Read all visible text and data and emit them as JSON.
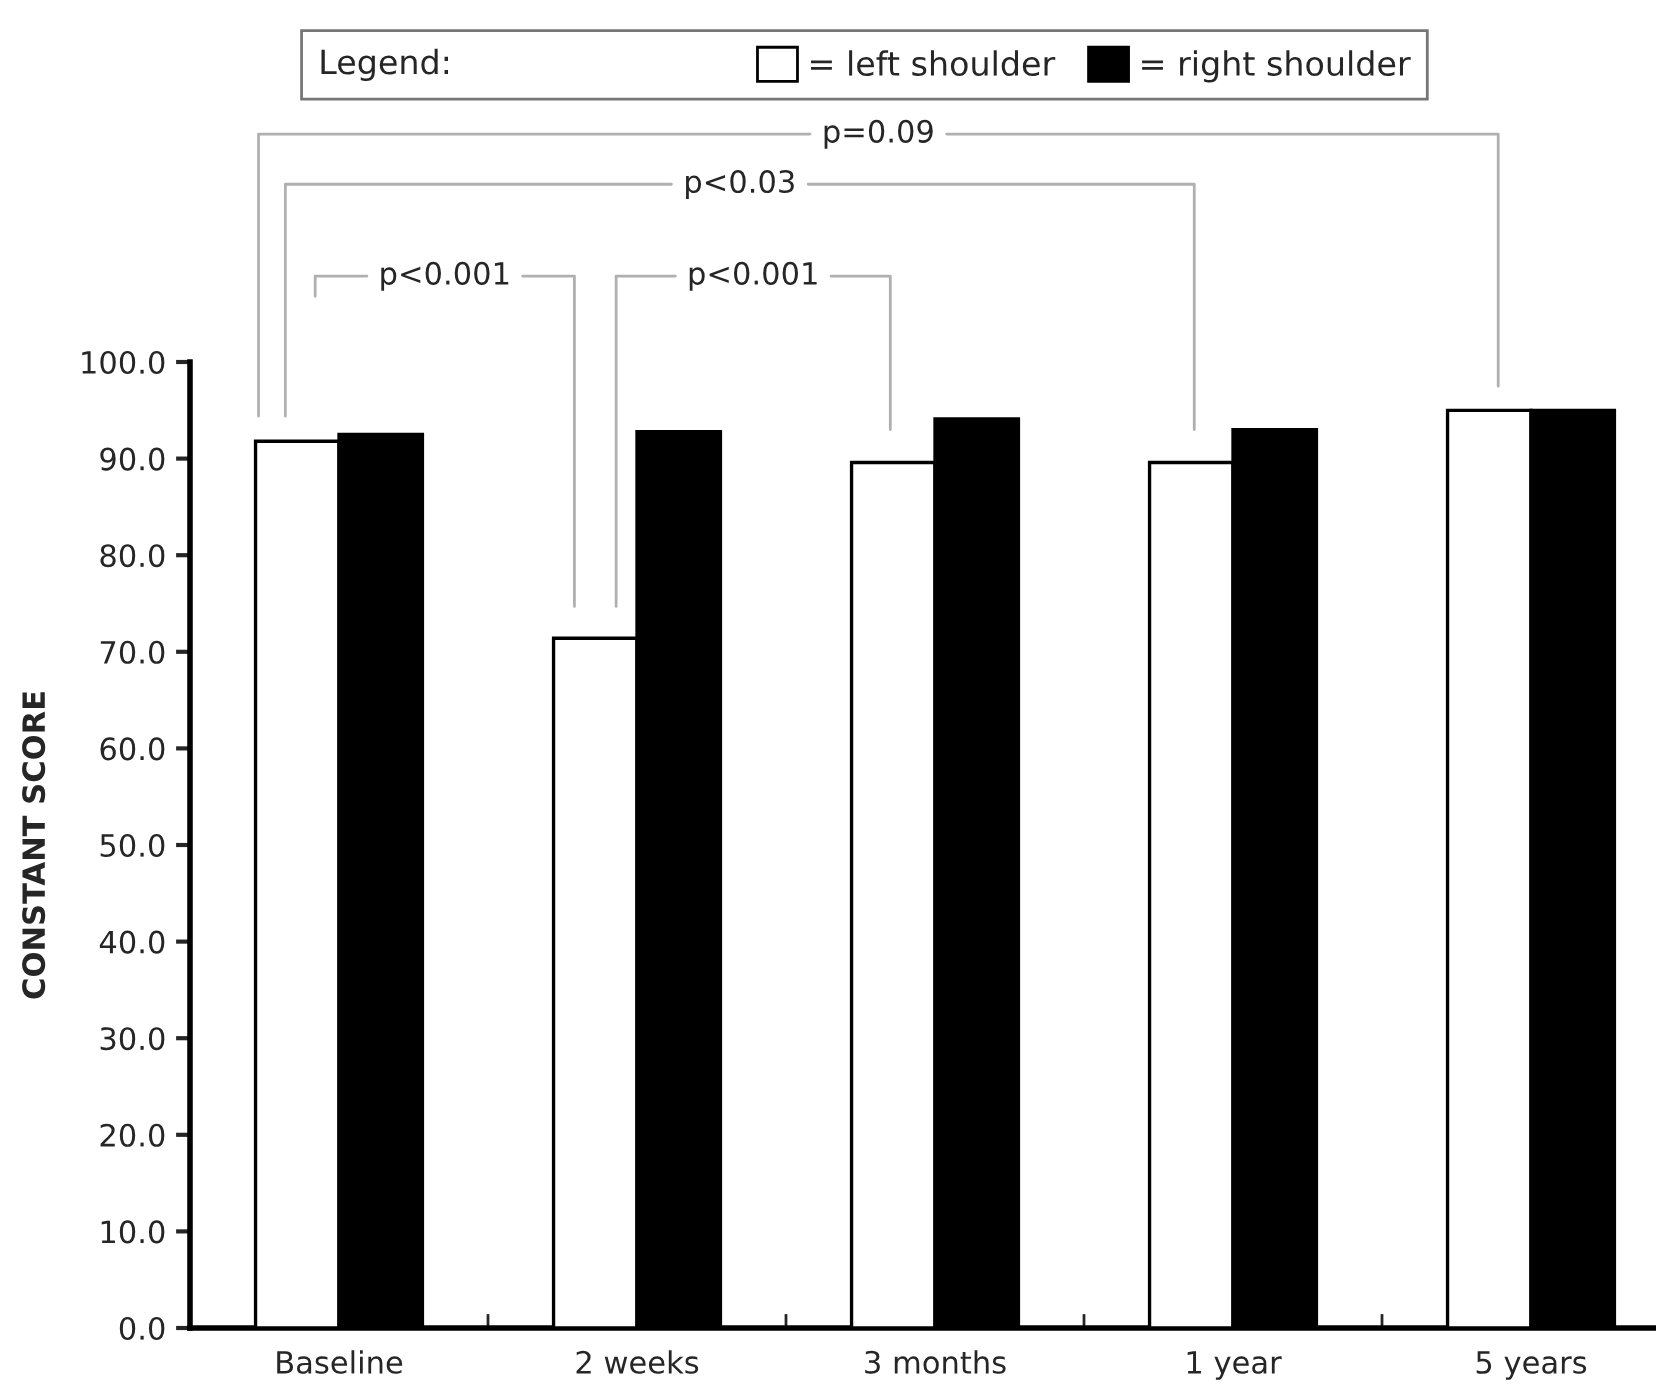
{
  "chart_data": {
    "type": "bar",
    "ylabel": "CONSTANT SCORE",
    "legend_title": "Legend:",
    "categories": [
      "Baseline",
      "2 weeks",
      "3 months",
      "1 year",
      "5 years"
    ],
    "series": [
      {
        "name": "= left shoulder",
        "color": "#ffffff",
        "values": [
          91.8,
          71.4,
          89.6,
          89.6,
          95.0
        ]
      },
      {
        "name": "= right shoulder",
        "color": "#000000",
        "values": [
          92.5,
          92.8,
          94.1,
          93.0,
          95.0
        ]
      }
    ],
    "ylim": [
      0,
      100
    ],
    "yticks": [
      {
        "value": 0,
        "label": "0.0"
      },
      {
        "value": 10,
        "label": "10.0"
      },
      {
        "value": 20,
        "label": "20.0"
      },
      {
        "value": 30,
        "label": "30.0"
      },
      {
        "value": 40,
        "label": "40.0"
      },
      {
        "value": 50,
        "label": "50.0"
      },
      {
        "value": 60,
        "label": "60.0"
      },
      {
        "value": 70,
        "label": "70.0"
      },
      {
        "value": 80,
        "label": "80.0"
      },
      {
        "value": 90,
        "label": "90.0"
      },
      {
        "value": 100,
        "label": "100.0"
      }
    ],
    "annotations": [
      "p<0.001",
      "p<0.001",
      "p<0.03",
      "p=0.09"
    ],
    "legend": "top",
    "grid": false
  }
}
